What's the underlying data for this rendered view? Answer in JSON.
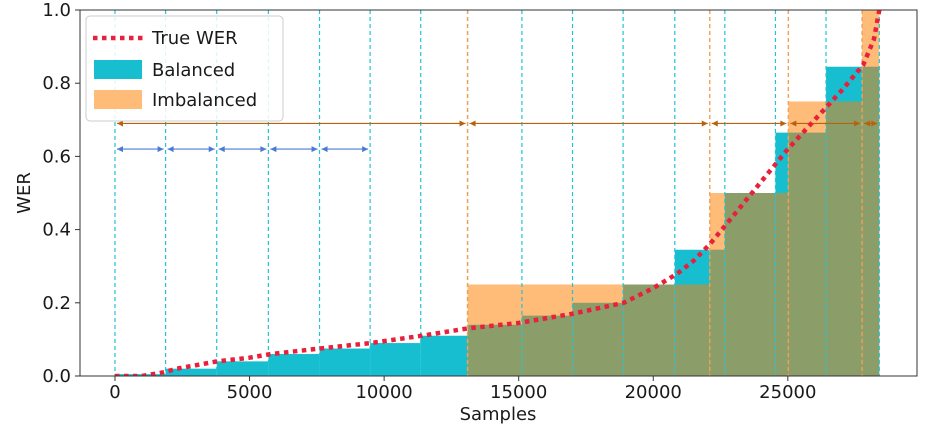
{
  "chart_data": {
    "type": "area",
    "title": "",
    "xlabel": "Samples",
    "ylabel": "WER",
    "xlim": [
      -1300,
      29800
    ],
    "ylim": [
      0.0,
      1.0
    ],
    "xticks": [
      0,
      5000,
      10000,
      15000,
      20000,
      25000
    ],
    "yticks": [
      0.0,
      0.2,
      0.4,
      0.6,
      0.8,
      1.0
    ],
    "xtick_labels": [
      "0",
      "5000",
      "10000",
      "15000",
      "20000",
      "25000"
    ],
    "ytick_labels": [
      "0.0",
      "0.2",
      "0.4",
      "0.6",
      "0.8",
      "1.0"
    ],
    "legend_position": "top-left",
    "colors": {
      "true_wer": "#e8203c",
      "balanced": "#17becf",
      "imbalanced": "#ffbb78",
      "overlap": "#8b9e6a",
      "balanced_split": "#22c4d6",
      "imbalanced_split": "#f4a050",
      "balanced_arrow": "#4a7ad6",
      "imbalanced_arrow": "#b8620c"
    },
    "series": [
      {
        "name": "True WER",
        "style": "dotted",
        "x": [
          0,
          1000,
          1800,
          2300,
          3800,
          5000,
          5800,
          7600,
          9500,
          11400,
          13100,
          15000,
          17000,
          18900,
          20000,
          20900,
          21500,
          22100,
          23000,
          24000,
          25000,
          26000,
          27000,
          27800,
          28200,
          28400
        ],
        "y": [
          0.0,
          0.0,
          0.01,
          0.02,
          0.04,
          0.05,
          0.06,
          0.075,
          0.09,
          0.11,
          0.13,
          0.145,
          0.17,
          0.2,
          0.24,
          0.28,
          0.315,
          0.36,
          0.44,
          0.53,
          0.62,
          0.7,
          0.78,
          0.85,
          0.92,
          1.0
        ]
      },
      {
        "name": "Balanced",
        "style": "step",
        "edges": [
          0,
          1880,
          3780,
          5700,
          7600,
          9480,
          11360,
          13100,
          15120,
          17000,
          18880,
          20800,
          22100,
          22660,
          24540,
          25020,
          26420,
          27760,
          28400
        ],
        "values": [
          0.005,
          0.02,
          0.04,
          0.06,
          0.075,
          0.09,
          0.11,
          0.14,
          0.165,
          0.2,
          0.25,
          0.345,
          0.345,
          0.5,
          0.665,
          0.665,
          0.845,
          0.845
        ]
      },
      {
        "name": "Imbalanced",
        "style": "step",
        "edges": [
          13100,
          22100,
          25020,
          27760,
          28400
        ],
        "values": [
          0.25,
          0.5,
          0.75,
          1.0
        ]
      }
    ],
    "balanced_split_positions": [
      0,
      1880,
      3780,
      5700,
      7600,
      9480,
      11360,
      13100,
      15120,
      17000,
      18880,
      20800,
      22660,
      24540,
      26420,
      28400
    ],
    "imbalanced_split_positions": [
      13100,
      22100,
      25020,
      27760
    ],
    "balanced_arrows": {
      "y": 0.62,
      "segments": [
        [
          0,
          1880
        ],
        [
          1880,
          3780
        ],
        [
          3780,
          5700
        ],
        [
          5700,
          7600
        ],
        [
          7600,
          9480
        ]
      ]
    },
    "imbalanced_arrows": {
      "y": 0.69,
      "segments": [
        [
          0,
          13100
        ],
        [
          13100,
          22100
        ],
        [
          22100,
          25020
        ],
        [
          25020,
          27760
        ],
        [
          27760,
          28400
        ]
      ]
    }
  }
}
